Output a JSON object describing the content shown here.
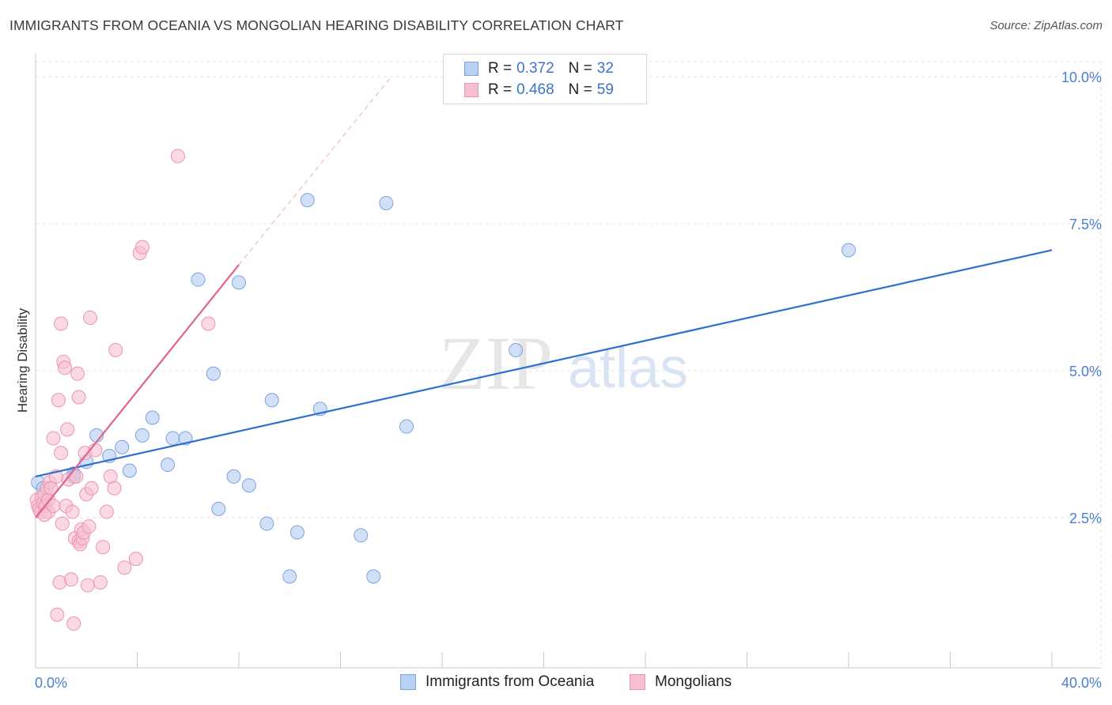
{
  "title": "IMMIGRANTS FROM OCEANIA VS MONGOLIAN HEARING DISABILITY CORRELATION CHART",
  "source": "Source: ZipAtlas.com",
  "watermark": {
    "zip": "ZIP",
    "atlas": "atlas"
  },
  "legend": {
    "r_label": "R =",
    "n_label": "N =",
    "series": [
      {
        "r": "0.372",
        "n": "32"
      },
      {
        "r": "0.468",
        "n": "59"
      }
    ]
  },
  "colors": {
    "blue_fill": "#b8d0f2",
    "blue_stroke": "#7aa4de",
    "blue_line": "#2e6fcf",
    "pink_fill": "#f7c0d2",
    "pink_stroke": "#ec93b2",
    "pink_line": "#e0638f",
    "tick_text": "#4a7fd0",
    "grid": "#e3e3e3"
  },
  "chart_data": {
    "type": "scatter",
    "title": "IMMIGRANTS FROM OCEANIA VS MONGOLIAN HEARING DISABILITY CORRELATION CHART",
    "xlabel": "",
    "ylabel": "Hearing Disability",
    "xlim": [
      0,
      40
    ],
    "ylim": [
      0,
      10.5
    ],
    "x_tick_labels": [
      "0.0%",
      "40.0%"
    ],
    "y_ticks": [
      2.5,
      5.0,
      7.5,
      10.0
    ],
    "y_tick_labels": [
      "2.5%",
      "5.0%",
      "7.5%",
      "10.0%"
    ],
    "grid": true,
    "legend_position": "top-center",
    "series": [
      {
        "name": "Immigrants from Oceania",
        "color": "#b8d0f2",
        "trend": {
          "x": [
            0,
            40
          ],
          "y": [
            3.2,
            7.05
          ]
        },
        "points": [
          [
            0.1,
            3.1
          ],
          [
            0.3,
            3.0
          ],
          [
            1.5,
            3.25
          ],
          [
            1.5,
            3.2
          ],
          [
            2.0,
            3.45
          ],
          [
            2.4,
            3.9
          ],
          [
            2.9,
            3.55
          ],
          [
            3.4,
            3.7
          ],
          [
            3.7,
            3.3
          ],
          [
            4.2,
            3.9
          ],
          [
            4.6,
            4.2
          ],
          [
            5.2,
            3.4
          ],
          [
            5.4,
            3.85
          ],
          [
            5.9,
            3.85
          ],
          [
            6.4,
            6.55
          ],
          [
            7.0,
            4.95
          ],
          [
            7.2,
            2.65
          ],
          [
            7.8,
            3.2
          ],
          [
            8.0,
            6.5
          ],
          [
            8.4,
            3.05
          ],
          [
            9.1,
            2.4
          ],
          [
            9.3,
            4.5
          ],
          [
            10.0,
            1.5
          ],
          [
            10.3,
            2.25
          ],
          [
            10.7,
            7.9
          ],
          [
            11.2,
            4.35
          ],
          [
            12.8,
            2.2
          ],
          [
            13.3,
            1.5
          ],
          [
            13.8,
            7.85
          ],
          [
            14.6,
            4.05
          ],
          [
            18.9,
            5.35
          ],
          [
            32.0,
            7.05
          ]
        ]
      },
      {
        "name": "Mongolians",
        "color": "#f7c0d2",
        "trend": {
          "x": [
            0,
            8.0
          ],
          "y": [
            2.5,
            6.8
          ]
        },
        "trend_dashed": {
          "x": [
            8.0,
            14.0
          ],
          "y": [
            6.8,
            10.0
          ]
        },
        "points": [
          [
            0.05,
            2.8
          ],
          [
            0.1,
            2.7
          ],
          [
            0.15,
            2.65
          ],
          [
            0.2,
            2.6
          ],
          [
            0.25,
            2.85
          ],
          [
            0.3,
            2.75
          ],
          [
            0.35,
            2.9
          ],
          [
            0.4,
            2.7
          ],
          [
            0.45,
            3.0
          ],
          [
            0.5,
            2.6
          ],
          [
            0.5,
            2.8
          ],
          [
            0.55,
            3.1
          ],
          [
            0.6,
            3.0
          ],
          [
            0.7,
            3.85
          ],
          [
            0.7,
            2.7
          ],
          [
            0.8,
            3.2
          ],
          [
            0.85,
            0.85
          ],
          [
            0.9,
            4.5
          ],
          [
            0.95,
            1.4
          ],
          [
            1.0,
            5.8
          ],
          [
            1.0,
            3.6
          ],
          [
            1.05,
            2.4
          ],
          [
            1.1,
            5.15
          ],
          [
            1.15,
            5.05
          ],
          [
            1.2,
            2.7
          ],
          [
            1.25,
            4.0
          ],
          [
            1.3,
            3.15
          ],
          [
            1.4,
            1.45
          ],
          [
            1.45,
            2.6
          ],
          [
            1.5,
            0.7
          ],
          [
            1.55,
            2.15
          ],
          [
            1.6,
            3.2
          ],
          [
            1.65,
            4.95
          ],
          [
            1.7,
            4.55
          ],
          [
            1.7,
            2.1
          ],
          [
            1.75,
            2.05
          ],
          [
            1.8,
            2.3
          ],
          [
            1.85,
            2.15
          ],
          [
            1.9,
            2.25
          ],
          [
            1.95,
            3.6
          ],
          [
            2.0,
            2.9
          ],
          [
            2.05,
            1.35
          ],
          [
            2.1,
            2.35
          ],
          [
            2.15,
            5.9
          ],
          [
            2.2,
            3.0
          ],
          [
            2.35,
            3.65
          ],
          [
            2.55,
            1.4
          ],
          [
            2.65,
            2.0
          ],
          [
            2.8,
            2.6
          ],
          [
            2.95,
            3.2
          ],
          [
            3.1,
            3.0
          ],
          [
            3.15,
            5.35
          ],
          [
            3.5,
            1.65
          ],
          [
            3.95,
            1.8
          ],
          [
            4.1,
            7.0
          ],
          [
            4.2,
            7.1
          ],
          [
            5.6,
            8.65
          ],
          [
            6.8,
            5.8
          ],
          [
            0.35,
            2.55
          ]
        ]
      }
    ]
  },
  "bottom_legend": [
    "Immigrants from Oceania",
    "Mongolians"
  ]
}
